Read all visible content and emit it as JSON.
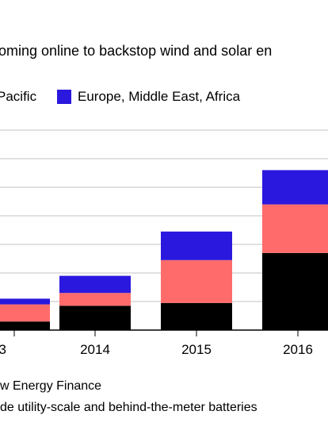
{
  "subtitle": "oming online to backstop wind and solar en",
  "footnotes": {
    "source": "w Energy Finance",
    "note": "de utility-scale and behind-the-meter batteries"
  },
  "chart_data": {
    "type": "bar",
    "stacked": true,
    "categories": [
      "3",
      "2014",
      "2015",
      "2016"
    ],
    "series": [
      {
        "name": "",
        "color": "#000000",
        "values": [
          3,
          8.5,
          9.5,
          27
        ]
      },
      {
        "name": "Pacific",
        "color": "#ff6b6b",
        "values": [
          6,
          4.5,
          15,
          17
        ]
      },
      {
        "name": "Europe, Middle East, Africa",
        "color": "#2b18de",
        "values": [
          2,
          6,
          10,
          12
        ]
      }
    ],
    "ylim": [
      0,
      70
    ],
    "grid": true,
    "legend": "top"
  }
}
